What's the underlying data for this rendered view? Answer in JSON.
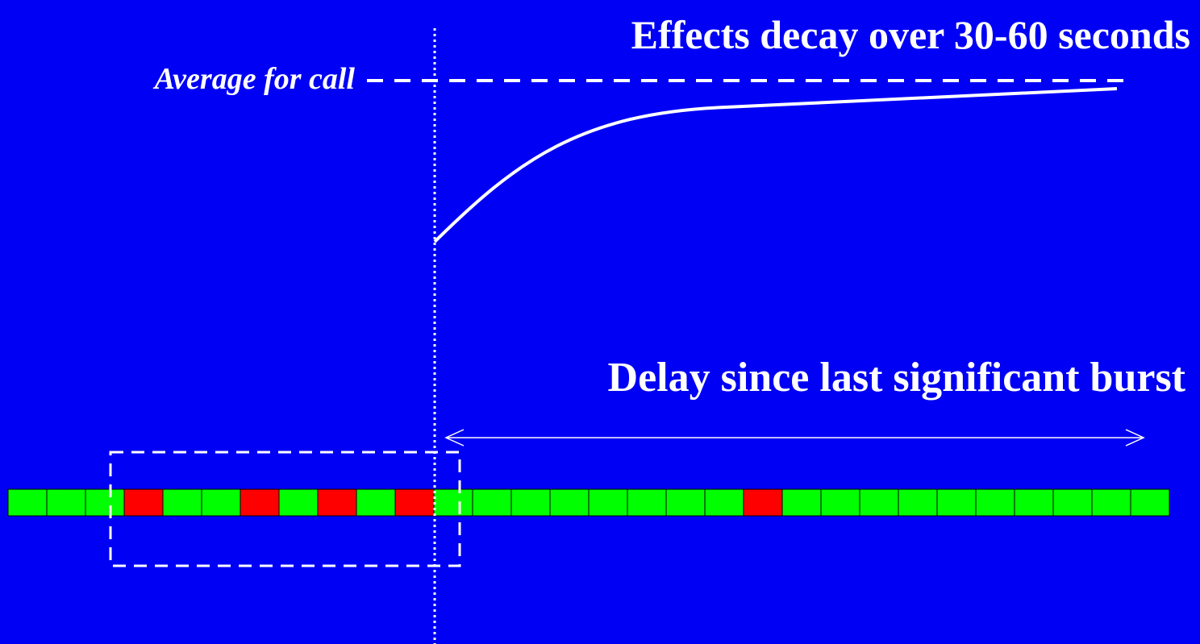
{
  "header": {
    "title": "Effects decay over 30-60 seconds"
  },
  "labels": {
    "average": "Average for call",
    "delay": "Delay since last significant burst"
  }
}
